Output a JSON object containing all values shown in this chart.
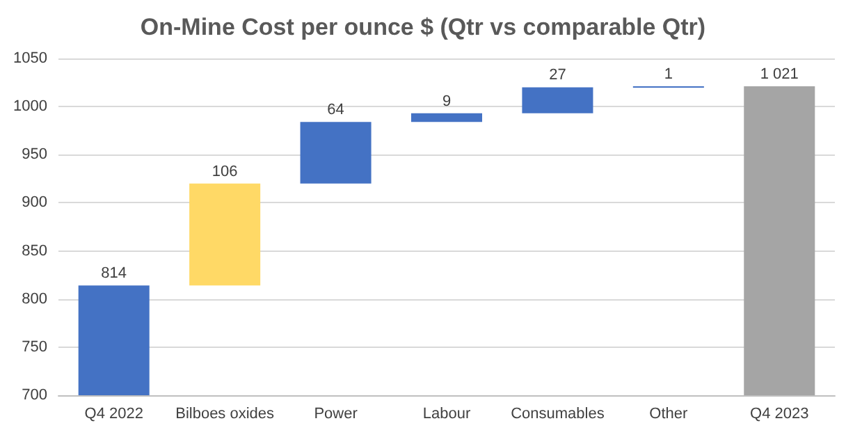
{
  "chart_data": {
    "type": "bar",
    "title": "On-Mine Cost per ounce $ (Qtr vs comparable Qtr)",
    "categories": [
      "Q4 2022",
      "Bilboes oxides",
      "Power",
      "Labour",
      "Consumables",
      "Other",
      "Q4 2023"
    ],
    "values": [
      814,
      106,
      64,
      9,
      27,
      1,
      1021
    ],
    "base": [
      null,
      814,
      920,
      984,
      993,
      1020,
      null
    ],
    "colors": [
      "#4472c4",
      "#ffd966",
      "#4472c4",
      "#4472c4",
      "#4472c4",
      "#4472c4",
      "#a5a5a5"
    ],
    "value_labels": [
      "814",
      "106",
      "64",
      "9",
      "27",
      "1",
      "1 021"
    ],
    "ylim": [
      700,
      1050
    ],
    "yticks": [
      700,
      750,
      800,
      850,
      900,
      950,
      1000,
      1050
    ],
    "grid": "y"
  }
}
